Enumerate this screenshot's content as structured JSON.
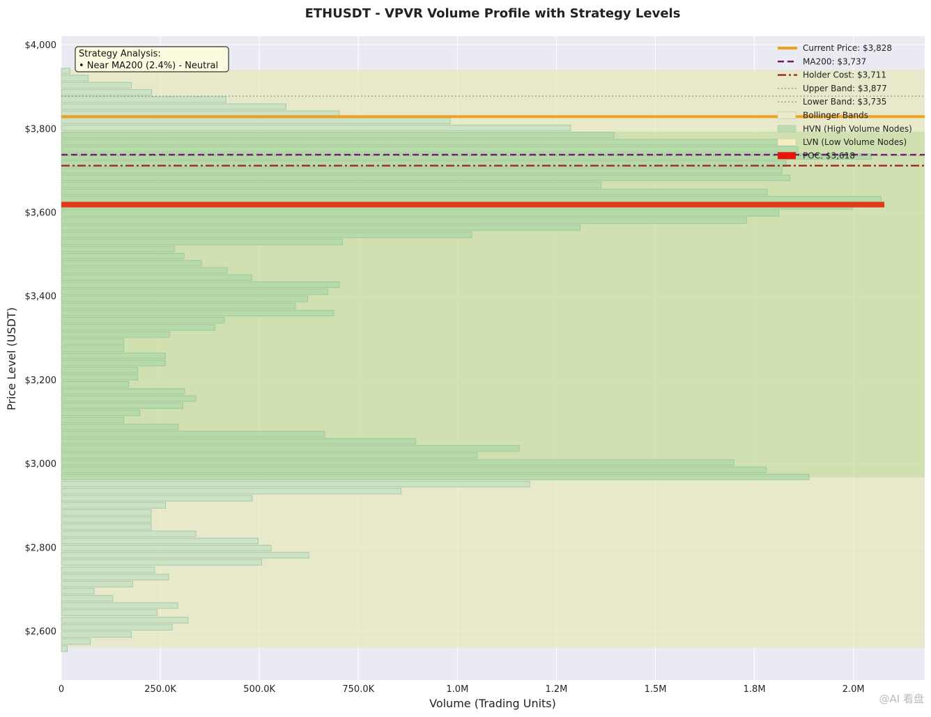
{
  "chart_data": {
    "type": "bar",
    "orientation": "horizontal",
    "title": "ETHUSDT - VPVR Volume Profile with Strategy Levels",
    "xlabel": "Volume (Trading Units)",
    "ylabel": "Price Level (USDT)",
    "xlim": [
      0,
      2180000
    ],
    "ylim": [
      2483,
      4020
    ],
    "x_ticks": [
      {
        "value": 0,
        "label": "0"
      },
      {
        "value": 250000,
        "label": "250.0K"
      },
      {
        "value": 500000,
        "label": "500.0K"
      },
      {
        "value": 750000,
        "label": "750.0K"
      },
      {
        "value": 1000000,
        "label": "1.0M"
      },
      {
        "value": 1250000,
        "label": "1.2M"
      },
      {
        "value": 1500000,
        "label": "1.5M"
      },
      {
        "value": 1750000,
        "label": "1.8M"
      },
      {
        "value": 2000000,
        "label": "2.0M"
      }
    ],
    "y_ticks": [
      {
        "value": 2600,
        "label": "$2,600"
      },
      {
        "value": 2800,
        "label": "$2,800"
      },
      {
        "value": 3000,
        "label": "$3,000"
      },
      {
        "value": 3200,
        "label": "$3,200"
      },
      {
        "value": 3400,
        "label": "$3,400"
      },
      {
        "value": 3600,
        "label": "$3,600"
      },
      {
        "value": 3800,
        "label": "$3,800"
      },
      {
        "value": 4000,
        "label": "$4,000"
      }
    ],
    "bin_height": 17.1,
    "bars": [
      {
        "price": 2558,
        "volume": 15000,
        "type": "normal"
      },
      {
        "price": 2575,
        "volume": 73000,
        "type": "normal"
      },
      {
        "price": 2592,
        "volume": 177000,
        "type": "normal"
      },
      {
        "price": 2609,
        "volume": 280000,
        "type": "normal"
      },
      {
        "price": 2626,
        "volume": 320000,
        "type": "normal"
      },
      {
        "price": 2644,
        "volume": 242000,
        "type": "normal"
      },
      {
        "price": 2661,
        "volume": 294000,
        "type": "normal"
      },
      {
        "price": 2678,
        "volume": 130000,
        "type": "normal"
      },
      {
        "price": 2695,
        "volume": 83000,
        "type": "normal"
      },
      {
        "price": 2712,
        "volume": 180000,
        "type": "normal"
      },
      {
        "price": 2729,
        "volume": 271000,
        "type": "normal"
      },
      {
        "price": 2746,
        "volume": 236000,
        "type": "normal"
      },
      {
        "price": 2764,
        "volume": 506000,
        "type": "normal"
      },
      {
        "price": 2781,
        "volume": 625000,
        "type": "normal"
      },
      {
        "price": 2798,
        "volume": 530000,
        "type": "normal"
      },
      {
        "price": 2815,
        "volume": 497000,
        "type": "normal"
      },
      {
        "price": 2832,
        "volume": 340000,
        "type": "normal"
      },
      {
        "price": 2849,
        "volume": 227000,
        "type": "normal"
      },
      {
        "price": 2866,
        "volume": 227000,
        "type": "normal"
      },
      {
        "price": 2883,
        "volume": 227000,
        "type": "normal"
      },
      {
        "price": 2900,
        "volume": 263000,
        "type": "normal"
      },
      {
        "price": 2917,
        "volume": 482000,
        "type": "normal"
      },
      {
        "price": 2934,
        "volume": 858000,
        "type": "normal"
      },
      {
        "price": 2951,
        "volume": 1183000,
        "type": "normal"
      },
      {
        "price": 2968,
        "volume": 1888000,
        "type": "hvn"
      },
      {
        "price": 2985,
        "volume": 1780000,
        "type": "hvn"
      },
      {
        "price": 3002,
        "volume": 1698000,
        "type": "hvn"
      },
      {
        "price": 3019,
        "volume": 1050000,
        "type": "hvn"
      },
      {
        "price": 3036,
        "volume": 1156000,
        "type": "hvn"
      },
      {
        "price": 3053,
        "volume": 895000,
        "type": "hvn"
      },
      {
        "price": 3070,
        "volume": 665000,
        "type": "hvn"
      },
      {
        "price": 3087,
        "volume": 295000,
        "type": "hvn"
      },
      {
        "price": 3104,
        "volume": 158000,
        "type": "hvn"
      },
      {
        "price": 3121,
        "volume": 198000,
        "type": "hvn"
      },
      {
        "price": 3138,
        "volume": 307000,
        "type": "hvn"
      },
      {
        "price": 3155,
        "volume": 340000,
        "type": "hvn"
      },
      {
        "price": 3172,
        "volume": 311000,
        "type": "hvn"
      },
      {
        "price": 3189,
        "volume": 170000,
        "type": "hvn"
      },
      {
        "price": 3206,
        "volume": 193000,
        "type": "hvn"
      },
      {
        "price": 3223,
        "volume": 193000,
        "type": "hvn"
      },
      {
        "price": 3240,
        "volume": 263000,
        "type": "hvn"
      },
      {
        "price": 3257,
        "volume": 263000,
        "type": "hvn"
      },
      {
        "price": 3274,
        "volume": 158000,
        "type": "hvn"
      },
      {
        "price": 3291,
        "volume": 158000,
        "type": "hvn"
      },
      {
        "price": 3308,
        "volume": 274000,
        "type": "hvn"
      },
      {
        "price": 3325,
        "volume": 388000,
        "type": "hvn"
      },
      {
        "price": 3342,
        "volume": 412000,
        "type": "hvn"
      },
      {
        "price": 3359,
        "volume": 688000,
        "type": "hvn"
      },
      {
        "price": 3376,
        "volume": 591000,
        "type": "hvn"
      },
      {
        "price": 3393,
        "volume": 622000,
        "type": "hvn"
      },
      {
        "price": 3410,
        "volume": 673000,
        "type": "hvn"
      },
      {
        "price": 3427,
        "volume": 702000,
        "type": "hvn"
      },
      {
        "price": 3444,
        "volume": 481000,
        "type": "hvn"
      },
      {
        "price": 3461,
        "volume": 419000,
        "type": "hvn"
      },
      {
        "price": 3478,
        "volume": 354000,
        "type": "hvn"
      },
      {
        "price": 3495,
        "volume": 310000,
        "type": "hvn"
      },
      {
        "price": 3512,
        "volume": 286000,
        "type": "hvn"
      },
      {
        "price": 3529,
        "volume": 710000,
        "type": "hvn"
      },
      {
        "price": 3546,
        "volume": 1036000,
        "type": "hvn"
      },
      {
        "price": 3563,
        "volume": 1310000,
        "type": "hvn"
      },
      {
        "price": 3580,
        "volume": 1730000,
        "type": "hvn"
      },
      {
        "price": 3597,
        "volume": 1812000,
        "type": "hvn"
      },
      {
        "price": 3614,
        "volume": 1998000,
        "type": "hvn"
      },
      {
        "price": 3631,
        "volume": 2070000,
        "type": "hvn"
      },
      {
        "price": 3648,
        "volume": 1782000,
        "type": "hvn"
      },
      {
        "price": 3665,
        "volume": 1363000,
        "type": "hvn"
      },
      {
        "price": 3682,
        "volume": 1840000,
        "type": "hvn"
      },
      {
        "price": 3699,
        "volume": 1820000,
        "type": "hvn"
      },
      {
        "price": 3716,
        "volume": 1830000,
        "type": "hvn"
      },
      {
        "price": 3733,
        "volume": 2045000,
        "type": "hvn"
      },
      {
        "price": 3750,
        "volume": 1860000,
        "type": "hvn"
      },
      {
        "price": 3767,
        "volume": 1812000,
        "type": "hvn"
      },
      {
        "price": 3784,
        "volume": 1396000,
        "type": "hvn"
      },
      {
        "price": 3801,
        "volume": 1286000,
        "type": "normal"
      },
      {
        "price": 3818,
        "volume": 982000,
        "type": "normal"
      },
      {
        "price": 3835,
        "volume": 702000,
        "type": "normal"
      },
      {
        "price": 3852,
        "volume": 567000,
        "type": "normal"
      },
      {
        "price": 3869,
        "volume": 416000,
        "type": "normal"
      },
      {
        "price": 3886,
        "volume": 228000,
        "type": "normal"
      },
      {
        "price": 3903,
        "volume": 177000,
        "type": "normal"
      },
      {
        "price": 3920,
        "volume": 68000,
        "type": "normal"
      },
      {
        "price": 3937,
        "volume": 22000,
        "type": "normal"
      }
    ],
    "bollinger_band": {
      "low": 2560,
      "high": 3940
    },
    "hvn_zone": {
      "low": 2967,
      "high": 3792
    },
    "lines": [
      {
        "name": "current_price",
        "price": 3828,
        "color": "#f0a020",
        "style": "solid"
      },
      {
        "name": "ma200",
        "price": 3737,
        "color": "#6a1b6e",
        "style": "dashed"
      },
      {
        "name": "holder_cost",
        "price": 3711,
        "color": "#a0302a",
        "style": "dashdot"
      },
      {
        "name": "upper_band",
        "price": 3877,
        "color": "#a0a090",
        "style": "dotted"
      },
      {
        "name": "lower_band",
        "price": 3735,
        "color": "#a0a090",
        "style": "dotted"
      }
    ],
    "poc": {
      "price": 3618,
      "volume": 2078000,
      "color": "#e03a1a"
    },
    "legend": {
      "placement": "top-right",
      "entries": [
        {
          "label": "Current Price: $3,828",
          "kind": "line",
          "color": "#f0a020",
          "style": "solid"
        },
        {
          "label": "MA200: $3,737",
          "kind": "line",
          "color": "#6a1b6e",
          "style": "dashed"
        },
        {
          "label": "Holder Cost: $3,711",
          "kind": "line",
          "color": "#a0302a",
          "style": "dashdot"
        },
        {
          "label": "Upper Band: $3,877",
          "kind": "line",
          "color": "#a0a090",
          "style": "dotted"
        },
        {
          "label": "Lower Band: $3,735",
          "kind": "line",
          "color": "#a0a090",
          "style": "dotted"
        },
        {
          "label": "Bollinger Bands",
          "kind": "patch",
          "color": "#ecebc8"
        },
        {
          "label": "HVN (High Volume Nodes)",
          "kind": "patch",
          "color": "#bcdcb0"
        },
        {
          "label": "LVN (Low Volume Nodes)",
          "kind": "patch",
          "color": "#f4eec0"
        },
        {
          "label": "POC: $3,618",
          "kind": "patch",
          "color": "#e8140c"
        }
      ]
    },
    "annotation": {
      "lines": [
        "Strategy Analysis:",
        "• Near MA200 (2.4%) - Neutral"
      ]
    },
    "grid": true
  },
  "watermark": "@AI 看盘"
}
